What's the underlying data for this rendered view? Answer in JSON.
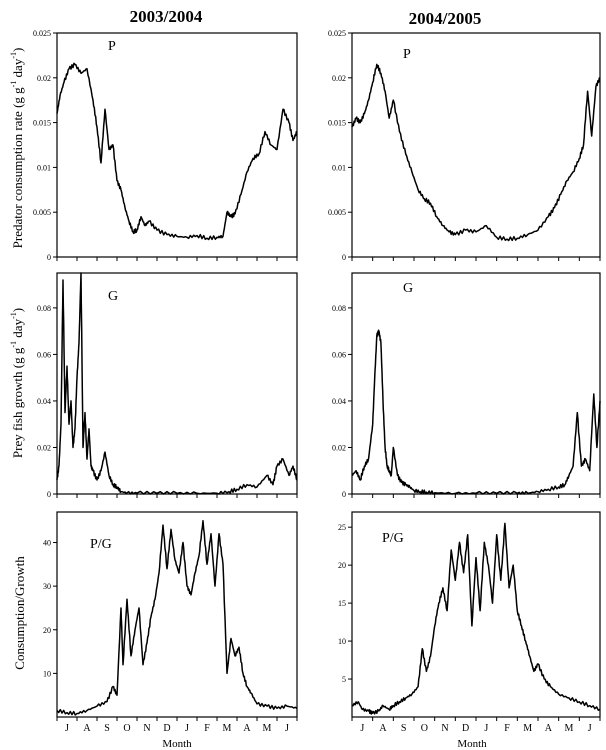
{
  "figure": {
    "left_title": "2003/2004",
    "right_title": "2004/2005",
    "ylabel_p_main": "Predator consumption rate (g g",
    "ylabel_p_sup1": "-1",
    "ylabel_p_mid": " day",
    "ylabel_p_sup2": "-1",
    "ylabel_p_end": ")",
    "ylabel_g_main": "Prey fish growth (g g",
    "ylabel_g_sup1": "-1",
    "ylabel_g_mid": " day",
    "ylabel_g_sup2": "-1",
    "ylabel_g_end": ")",
    "ylabel_pg": "Consumption/Growth",
    "xlabel": "Month",
    "months": [
      "J",
      "A",
      "S",
      "O",
      "N",
      "D",
      "J",
      "F",
      "M",
      "A",
      "M",
      "J"
    ]
  },
  "chart_data": [
    {
      "type": "line",
      "id": "p_2003",
      "panel_label": "P",
      "ylim": [
        0,
        0.025
      ],
      "yticks": [
        "0",
        "0.005",
        "0.01",
        "0.015",
        "0.02",
        "0.025"
      ],
      "ytick_values": [
        0,
        0.005,
        0.01,
        0.015,
        0.02,
        0.025
      ],
      "x_month": [
        0,
        0.15,
        0.35,
        0.6,
        0.9,
        1.2,
        1.5,
        1.8,
        2.0,
        2.2,
        2.4,
        2.6,
        2.8,
        3.0,
        3.2,
        3.4,
        3.6,
        3.8,
        4.0,
        4.2,
        4.4,
        4.6,
        5.0,
        5.5,
        6.0,
        6.5,
        7.0,
        7.5,
        8.0,
        8.3,
        8.5,
        8.7,
        8.9,
        9.2,
        9.5,
        9.8,
        10.1,
        10.4,
        10.7,
        11.0,
        11.3,
        11.6,
        11.8,
        12.0
      ],
      "y": [
        0.016,
        0.018,
        0.0195,
        0.021,
        0.0215,
        0.0205,
        0.021,
        0.0175,
        0.0145,
        0.0105,
        0.0165,
        0.012,
        0.0125,
        0.0085,
        0.0075,
        0.0055,
        0.004,
        0.0028,
        0.003,
        0.0045,
        0.0035,
        0.004,
        0.003,
        0.0025,
        0.0023,
        0.0022,
        0.0024,
        0.0021,
        0.0022,
        0.0023,
        0.005,
        0.0045,
        0.0048,
        0.007,
        0.0095,
        0.011,
        0.0115,
        0.014,
        0.0125,
        0.012,
        0.0165,
        0.015,
        0.013,
        0.014
      ]
    },
    {
      "type": "line",
      "id": "p_2004",
      "panel_label": "P",
      "ylim": [
        0,
        0.025
      ],
      "yticks": [
        "0",
        "0.005",
        "0.01",
        "0.015",
        "0.02",
        "0.025"
      ],
      "ytick_values": [
        0,
        0.005,
        0.01,
        0.015,
        0.02,
        0.025
      ],
      "x_month": [
        0,
        0.2,
        0.4,
        0.6,
        0.8,
        1.0,
        1.2,
        1.4,
        1.6,
        1.8,
        2.0,
        2.3,
        2.6,
        2.9,
        3.2,
        3.5,
        3.8,
        4.1,
        4.4,
        4.7,
        5.0,
        5.5,
        6.0,
        6.5,
        7.0,
        7.5,
        8.0,
        8.5,
        9.0,
        9.5,
        9.8,
        10.1,
        10.4,
        10.7,
        11.0,
        11.2,
        11.4,
        11.6,
        11.8,
        12.0
      ],
      "y": [
        0.0145,
        0.0155,
        0.015,
        0.016,
        0.0175,
        0.0195,
        0.0215,
        0.0205,
        0.0185,
        0.0155,
        0.0175,
        0.014,
        0.0115,
        0.0095,
        0.0075,
        0.0065,
        0.006,
        0.0045,
        0.0035,
        0.0028,
        0.0025,
        0.003,
        0.0028,
        0.0035,
        0.0022,
        0.002,
        0.0021,
        0.0025,
        0.003,
        0.0045,
        0.0055,
        0.007,
        0.0085,
        0.0095,
        0.011,
        0.0125,
        0.0185,
        0.0135,
        0.019,
        0.02
      ]
    },
    {
      "type": "line",
      "id": "g_2003",
      "panel_label": "G",
      "ylim": [
        0,
        0.095
      ],
      "yticks": [
        "0",
        "0.02",
        "0.04",
        "0.06",
        "0.08"
      ],
      "ytick_values": [
        0,
        0.02,
        0.04,
        0.06,
        0.08
      ],
      "x_month": [
        0,
        0.1,
        0.2,
        0.3,
        0.4,
        0.5,
        0.6,
        0.7,
        0.8,
        0.9,
        1.0,
        1.1,
        1.2,
        1.3,
        1.4,
        1.5,
        1.6,
        1.7,
        1.8,
        2.0,
        2.2,
        2.4,
        2.6,
        2.8,
        3.0,
        3.2,
        3.5,
        4.0,
        5.0,
        6.0,
        7.0,
        8.0,
        8.6,
        9.0,
        9.5,
        10.0,
        10.5,
        10.8,
        11.0,
        11.3,
        11.6,
        11.8,
        12.0
      ],
      "y": [
        0.006,
        0.012,
        0.03,
        0.092,
        0.035,
        0.055,
        0.03,
        0.04,
        0.02,
        0.028,
        0.05,
        0.065,
        0.095,
        0.02,
        0.035,
        0.015,
        0.028,
        0.012,
        0.01,
        0.006,
        0.01,
        0.018,
        0.008,
        0.004,
        0.003,
        0.001,
        0.0005,
        0.0004,
        0.0003,
        0.0003,
        0.0003,
        0.0003,
        0.001,
        0.002,
        0.004,
        0.003,
        0.008,
        0.004,
        0.012,
        0.015,
        0.008,
        0.012,
        0.006
      ]
    },
    {
      "type": "line",
      "id": "g_2004",
      "panel_label": "G",
      "ylim": [
        0,
        0.095
      ],
      "yticks": [
        "0",
        "0.02",
        "0.04",
        "0.06",
        "0.08"
      ],
      "ytick_values": [
        0,
        0.02,
        0.04,
        0.06,
        0.08
      ],
      "x_month": [
        0,
        0.2,
        0.4,
        0.6,
        0.8,
        1.0,
        1.1,
        1.2,
        1.3,
        1.4,
        1.5,
        1.6,
        1.7,
        1.8,
        1.9,
        2.0,
        2.2,
        2.4,
        2.6,
        2.8,
        3.0,
        3.3,
        3.6,
        4.0,
        5.0,
        6.0,
        7.0,
        8.0,
        8.5,
        9.0,
        9.5,
        10.0,
        10.3,
        10.5,
        10.7,
        10.9,
        11.1,
        11.3,
        11.5,
        11.7,
        11.85,
        12.0
      ],
      "y": [
        0.008,
        0.01,
        0.006,
        0.012,
        0.015,
        0.03,
        0.05,
        0.068,
        0.07,
        0.065,
        0.04,
        0.02,
        0.012,
        0.01,
        0.008,
        0.02,
        0.008,
        0.005,
        0.004,
        0.003,
        0.0015,
        0.001,
        0.0008,
        0.0005,
        0.0003,
        0.0003,
        0.0003,
        0.0003,
        0.0004,
        0.001,
        0.002,
        0.003,
        0.004,
        0.008,
        0.012,
        0.035,
        0.012,
        0.015,
        0.01,
        0.043,
        0.02,
        0.04
      ]
    },
    {
      "type": "line",
      "id": "pg_2003",
      "panel_label": "P/G",
      "ylim": [
        0,
        47
      ],
      "yticks": [
        "10",
        "20",
        "30",
        "40"
      ],
      "ytick_values": [
        10,
        20,
        30,
        40
      ],
      "x_month": [
        0,
        0.5,
        1.0,
        1.5,
        2.0,
        2.5,
        2.8,
        3.0,
        3.2,
        3.3,
        3.5,
        3.7,
        3.9,
        4.1,
        4.3,
        4.5,
        4.7,
        4.9,
        5.1,
        5.3,
        5.5,
        5.7,
        5.9,
        6.1,
        6.3,
        6.5,
        6.7,
        6.9,
        7.1,
        7.3,
        7.5,
        7.7,
        7.9,
        8.1,
        8.3,
        8.5,
        8.7,
        8.9,
        9.1,
        9.3,
        9.5,
        9.7,
        10.0,
        10.5,
        11.0,
        11.5,
        12.0
      ],
      "y": [
        1.5,
        1.0,
        0.8,
        1.5,
        2.5,
        3.5,
        7.0,
        5.0,
        25.0,
        12.0,
        27.0,
        14.0,
        20.0,
        25.0,
        12.0,
        17.0,
        23.0,
        27.0,
        33.0,
        44.0,
        34.0,
        43.0,
        36.0,
        33.0,
        40.0,
        30.0,
        28.0,
        33.0,
        37.0,
        45.0,
        35.0,
        42.0,
        30.0,
        42.0,
        35.0,
        10.0,
        18.0,
        14.0,
        16.0,
        10.0,
        7.0,
        5.5,
        3.0,
        2.5,
        2.0,
        2.5,
        2.0
      ]
    },
    {
      "type": "line",
      "id": "pg_2004",
      "panel_label": "P/G",
      "ylim": [
        0,
        27
      ],
      "yticks": [
        "5",
        "10",
        "15",
        "20",
        "25"
      ],
      "ytick_values": [
        5,
        10,
        15,
        20,
        25
      ],
      "x_month": [
        0,
        0.3,
        0.5,
        0.8,
        1.0,
        1.3,
        1.5,
        1.8,
        2.0,
        2.3,
        2.6,
        2.9,
        3.2,
        3.4,
        3.6,
        3.8,
        4.0,
        4.2,
        4.4,
        4.6,
        4.8,
        5.0,
        5.2,
        5.4,
        5.6,
        5.8,
        6.0,
        6.2,
        6.4,
        6.6,
        6.8,
        7.0,
        7.2,
        7.4,
        7.6,
        7.8,
        8.0,
        8.2,
        8.4,
        8.6,
        8.8,
        9.0,
        9.3,
        9.6,
        10.0,
        10.5,
        11.0,
        11.5,
        12.0
      ],
      "y": [
        1.5,
        2.0,
        1.0,
        0.8,
        0.5,
        0.8,
        1.5,
        1.0,
        1.5,
        2.0,
        2.5,
        3.0,
        4.0,
        9.0,
        6.0,
        8.0,
        12.0,
        15.0,
        17.0,
        14.0,
        22.0,
        18.0,
        23.0,
        19.0,
        24.0,
        12.0,
        21.0,
        14.0,
        23.0,
        20.0,
        15.0,
        24.0,
        18.0,
        25.5,
        17.0,
        20.0,
        14.0,
        12.0,
        10.0,
        8.0,
        6.0,
        7.0,
        5.0,
        4.0,
        3.0,
        2.5,
        2.0,
        1.5,
        1.0
      ]
    }
  ]
}
